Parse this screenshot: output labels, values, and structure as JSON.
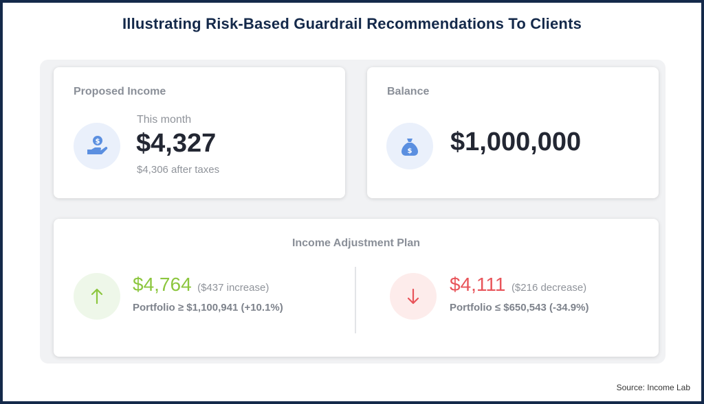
{
  "title": "Illustrating Risk-Based Guardrail Recommendations To Clients",
  "proposed_income": {
    "heading": "Proposed Income",
    "subheading": "This month",
    "amount": "$4,327",
    "after_taxes": "$4,306 after taxes",
    "icon": "money-hand-icon"
  },
  "balance": {
    "heading": "Balance",
    "amount": "$1,000,000",
    "icon": "money-bag-icon"
  },
  "adjustment_plan": {
    "heading": "Income Adjustment Plan",
    "increase": {
      "amount": "$4,764",
      "change": "($437 increase)",
      "portfolio": "Portfolio ≥ $1,100,941 (+10.1%)",
      "icon": "arrow-up-icon",
      "color": "#8cc63e"
    },
    "decrease": {
      "amount": "$4,111",
      "change": "($216 decrease)",
      "portfolio": "Portfolio ≤ $650,543 (-34.9%)",
      "icon": "arrow-down-icon",
      "color": "#e8545a"
    }
  },
  "source": "Source: Income Lab",
  "colors": {
    "frame": "#14294a",
    "icon_blue": "#5b8fe0",
    "green": "#8cc63e",
    "red": "#e8545a"
  }
}
